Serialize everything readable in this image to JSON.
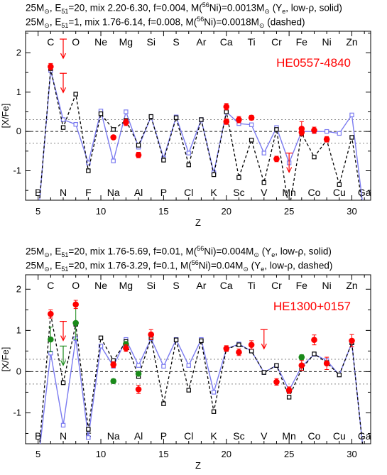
{
  "panels": [
    {
      "header_lines": [
        {
          "mass": "25M",
          "e51": "=20",
          "rest": ", mix 2.20-6.30, f=0.004, M(",
          "iso": "56",
          "tail": "Ni)=0.0013M",
          "sub_e": "51",
          "after": " (Y",
          "ye": "e",
          "end": ", low-ρ, solid)"
        },
        {
          "mass": "25M",
          "e51": "=1",
          "rest": ", mix 1.76-6.14, f=0.008, M(",
          "iso": "56",
          "tail": "Ni)=0.0018M",
          "sub_e": "51",
          "after": " (dashed)",
          "ye": "",
          "end": ""
        }
      ],
      "star_name": "HE0557-4840"
    },
    {
      "header_lines": [
        {
          "mass": "25M",
          "e51": "=20",
          "rest": ", mix 1.76-5.69, f=0.01, M(",
          "iso": "56",
          "tail": "Ni)=0.004M",
          "sub_e": "51",
          "after": " (Y",
          "ye": "e",
          "end": ", low-ρ, solid)"
        },
        {
          "mass": "25M",
          "e51": "=20",
          "rest": ", mix 1.76-3.29, f=0.1, M(",
          "iso": "56",
          "tail": "Ni)=0.04M",
          "sub_e": "51",
          "after": " (Y",
          "ye": "e",
          "end": ", low-ρ, dashed)"
        }
      ],
      "star_name": "HE1300+0157"
    }
  ],
  "chart_data": [
    {
      "type": "scatter",
      "title": "HE0557-4840",
      "xlabel": "Z",
      "ylabel": "[X/Fe]",
      "xlim": [
        4,
        31.5
      ],
      "ylim": [
        -1.75,
        2.55
      ],
      "xticks": [
        5,
        10,
        15,
        20,
        25,
        30
      ],
      "yticks": [
        -1,
        0,
        1,
        2
      ],
      "reference_lines": [
        0.3,
        0,
        -0.3
      ],
      "element_labels_top": [
        [
          "C",
          6
        ],
        [
          "O",
          8
        ],
        [
          "Ne",
          10
        ],
        [
          "Mg",
          12
        ],
        [
          "Si",
          14
        ],
        [
          "S",
          16
        ],
        [
          "Ar",
          18
        ],
        [
          "Ca",
          20
        ],
        [
          "Ti",
          22
        ],
        [
          "Cr",
          24
        ],
        [
          "Fe",
          26
        ],
        [
          "Ni",
          28
        ],
        [
          "Zn",
          30
        ]
      ],
      "element_labels_bottom": [
        [
          "B",
          5
        ],
        [
          "N",
          7
        ],
        [
          "F",
          9
        ],
        [
          "Na",
          11
        ],
        [
          "Al",
          13
        ],
        [
          "P",
          15
        ],
        [
          "Cl",
          17
        ],
        [
          "K",
          19
        ],
        [
          "Sc",
          21
        ],
        [
          "V",
          23
        ],
        [
          "Mn",
          25
        ],
        [
          "Co",
          27
        ],
        [
          "Cu",
          29
        ],
        [
          "Ga",
          31
        ]
      ],
      "series": [
        {
          "style": "solid",
          "x": [
            5,
            6,
            7,
            8,
            9,
            10,
            11,
            12,
            13,
            14,
            15,
            16,
            17,
            18,
            19,
            20,
            21,
            22,
            23,
            24,
            25,
            26,
            27,
            28,
            29,
            30,
            31
          ],
          "y": [
            -2.2,
            1.55,
            0.3,
            0.18,
            -0.8,
            0.52,
            -0.75,
            0.5,
            -0.4,
            0.38,
            -0.68,
            0.37,
            -0.55,
            0.3,
            -1.05,
            0.5,
            0.2,
            0.17,
            -0.55,
            0.1,
            -0.8,
            0.0,
            0.0,
            0.0,
            -0.05,
            0.42,
            -2.2
          ]
        },
        {
          "style": "dashed",
          "x": [
            5,
            6,
            7,
            8,
            9,
            10,
            11,
            12,
            13,
            14,
            15,
            16,
            17,
            18,
            19,
            20,
            21,
            22,
            23,
            24,
            25,
            26,
            27,
            28,
            29,
            30,
            31
          ],
          "y": [
            -2.2,
            1.6,
            0.1,
            0.95,
            -1.0,
            0.45,
            0.05,
            0.28,
            -0.35,
            0.38,
            -0.73,
            0.35,
            -0.85,
            0.3,
            -1.1,
            0.5,
            -1.17,
            -0.22,
            -1.3,
            0.05,
            -2.0,
            -0.05,
            -0.65,
            -0.22,
            -1.35,
            -0.15,
            -2.2
          ]
        }
      ],
      "observed_red": [
        {
          "x": 6,
          "y": 1.65,
          "err": 0.08
        },
        {
          "x": 11,
          "y": -0.15,
          "err": 0.05
        },
        {
          "x": 12,
          "y": 0.23,
          "err": 0.08
        },
        {
          "x": 13,
          "y": -0.6,
          "err": 0.07
        },
        {
          "x": 20,
          "y": 0.63,
          "err": 0.08
        },
        {
          "x": 20,
          "y": 0.25,
          "err": 0.07
        },
        {
          "x": 21,
          "y": 0.3,
          "err": 0.08
        },
        {
          "x": 22,
          "y": 0.35,
          "err": 0.06
        },
        {
          "x": 24,
          "y": -0.7,
          "err": 0.07
        },
        {
          "x": 26,
          "y": 0.07,
          "err": 0.18
        },
        {
          "x": 26,
          "y": -0.02,
          "err": 0.06
        },
        {
          "x": 27,
          "y": 0.03,
          "err": 0.08
        },
        {
          "x": 28,
          "y": -0.2,
          "err": 0.07
        }
      ],
      "observed_green": [],
      "upper_limits_red": [
        {
          "x": 7,
          "y": 2.35
        },
        {
          "x": 7,
          "y": 1.48
        },
        {
          "x": 25,
          "y": -0.55
        }
      ],
      "upper_limits_green": []
    },
    {
      "type": "scatter",
      "title": "HE1300+0157",
      "xlabel": "Z",
      "ylabel": "[X/Fe]",
      "xlim": [
        4,
        31.5
      ],
      "ylim": [
        -1.75,
        2.35
      ],
      "xticks": [
        5,
        10,
        15,
        20,
        25,
        30
      ],
      "yticks": [
        -1,
        0,
        1,
        2
      ],
      "reference_lines": [
        0.3,
        0,
        -0.3
      ],
      "element_labels_top": [
        [
          "C",
          6
        ],
        [
          "O",
          8
        ],
        [
          "Ne",
          10
        ],
        [
          "Mg",
          12
        ],
        [
          "Si",
          14
        ],
        [
          "S",
          16
        ],
        [
          "Ar",
          18
        ],
        [
          "Ca",
          20
        ],
        [
          "Ti",
          22
        ],
        [
          "Cr",
          24
        ],
        [
          "Fe",
          26
        ],
        [
          "Ni",
          28
        ],
        [
          "Zn",
          30
        ]
      ],
      "element_labels_bottom": [
        [
          "B",
          5
        ],
        [
          "N",
          7
        ],
        [
          "F",
          9
        ],
        [
          "Na",
          11
        ],
        [
          "Al",
          13
        ],
        [
          "P",
          15
        ],
        [
          "Cl",
          17
        ],
        [
          "K",
          19
        ],
        [
          "Sc",
          21
        ],
        [
          "V",
          23
        ],
        [
          "Mn",
          25
        ],
        [
          "Co",
          27
        ],
        [
          "Cu",
          29
        ],
        [
          "Ga",
          31
        ]
      ],
      "series": [
        {
          "style": "solid",
          "x": [
            5,
            6,
            7,
            8,
            9,
            10,
            11,
            12,
            13,
            14,
            15,
            16,
            17,
            18,
            19,
            20,
            21,
            22,
            23,
            24,
            25,
            26,
            27,
            28,
            29,
            30,
            31
          ],
          "y": [
            -2.2,
            0.45,
            -1.3,
            0.8,
            -1.6,
            0.62,
            0.13,
            0.78,
            0.15,
            0.8,
            0.13,
            0.78,
            0.15,
            0.78,
            -0.5,
            0.55,
            0.67,
            0.5,
            -0.02,
            0.15,
            -0.45,
            0.12,
            0.42,
            0.27,
            -0.08,
            0.7,
            -2.2
          ]
        },
        {
          "style": "dashed",
          "x": [
            5,
            6,
            7,
            8,
            9,
            10,
            11,
            12,
            13,
            14,
            15,
            16,
            17,
            18,
            19,
            20,
            21,
            22,
            23,
            24,
            25,
            26,
            27,
            28,
            29,
            30,
            31
          ],
          "y": [
            -2.2,
            1.4,
            -0.27,
            1.15,
            -1.4,
            0.82,
            0.27,
            0.73,
            -0.12,
            0.82,
            -0.78,
            0.77,
            -0.45,
            0.75,
            -0.97,
            0.55,
            0.65,
            0.5,
            -0.02,
            0.15,
            -0.62,
            0.07,
            0.43,
            0.22,
            -0.08,
            0.7,
            -2.2
          ]
        }
      ],
      "observed_red": [
        {
          "x": 6,
          "y": 1.4,
          "err": 0.1
        },
        {
          "x": 8,
          "y": 1.63,
          "err": 0.1
        },
        {
          "x": 11,
          "y": 0.17,
          "err": 0.07
        },
        {
          "x": 12,
          "y": 0.57,
          "err": 0.08
        },
        {
          "x": 13,
          "y": -0.43,
          "err": 0.1
        },
        {
          "x": 14,
          "y": 0.9,
          "err": 0.12
        },
        {
          "x": 20,
          "y": 0.56,
          "err": 0.07
        },
        {
          "x": 21,
          "y": 0.47,
          "err": 0.08
        },
        {
          "x": 22,
          "y": 0.65,
          "err": 0.1
        },
        {
          "x": 24,
          "y": -0.25,
          "err": 0.08
        },
        {
          "x": 25,
          "y": -0.45,
          "err": 0.08
        },
        {
          "x": 26,
          "y": 0.15,
          "err": 0.12
        },
        {
          "x": 27,
          "y": 0.77,
          "err": 0.12
        },
        {
          "x": 28,
          "y": 0.2,
          "err": 0.15
        },
        {
          "x": 30,
          "y": 0.75,
          "err": 0.15
        }
      ],
      "observed_green": [
        {
          "x": 6,
          "y": 0.78,
          "err": 0.3
        },
        {
          "x": 8,
          "y": 1.18,
          "err": 0.4
        },
        {
          "x": 11,
          "y": -0.23,
          "err": 0.05
        },
        {
          "x": 12,
          "y": 0.67,
          "err": 0.06
        },
        {
          "x": 13,
          "y": -0.05,
          "err": 0.05
        },
        {
          "x": 26,
          "y": 0.35,
          "err": 0.06
        }
      ],
      "upper_limits_red": [
        {
          "x": 7,
          "y": 1.22
        },
        {
          "x": 23,
          "y": 1.02
        }
      ],
      "upper_limits_green": [
        {
          "x": 7,
          "y": 0.62
        }
      ]
    }
  ]
}
